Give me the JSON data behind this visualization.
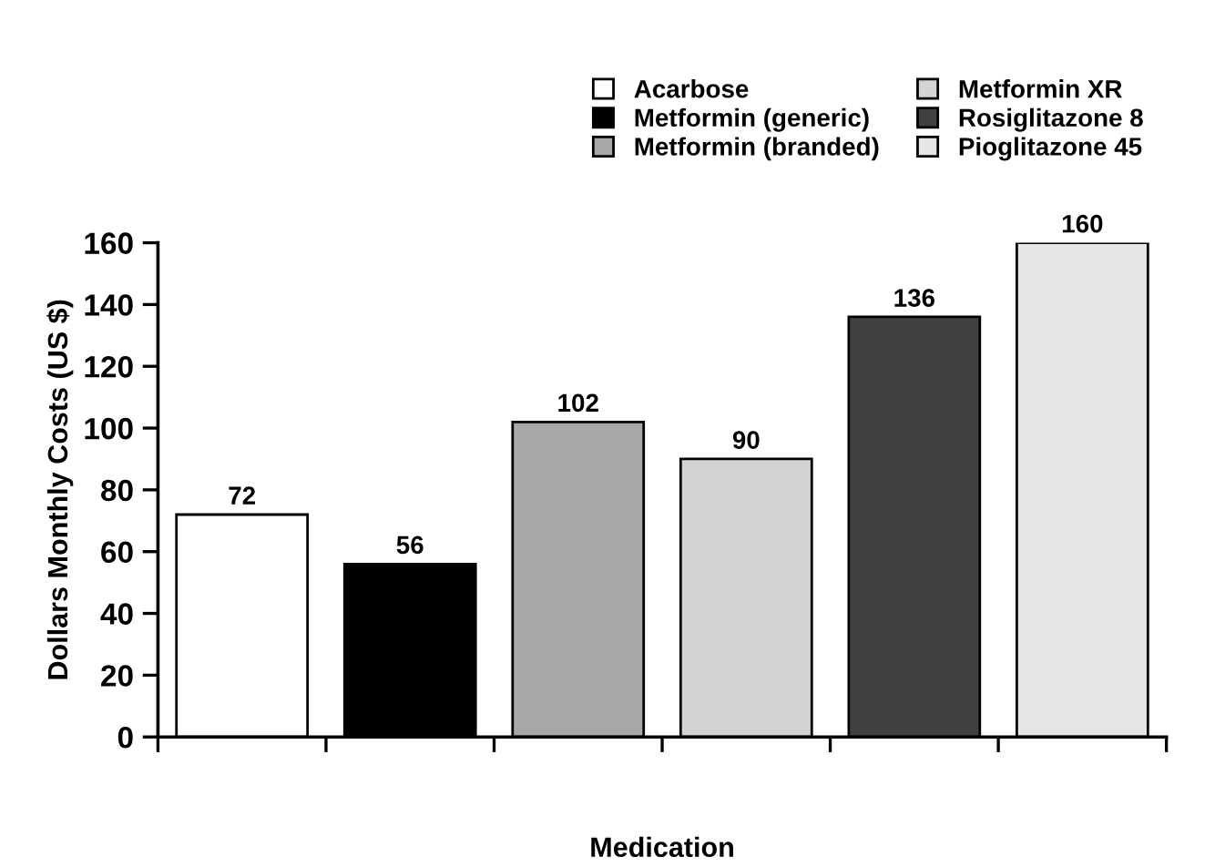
{
  "chart_data": {
    "type": "bar",
    "xlabel": "Medication",
    "ylabel": "Dollars Monthly Costs (US $)",
    "categories": [
      null,
      null,
      null,
      null,
      null,
      null
    ],
    "series": [
      {
        "name": "Acarbose",
        "color": "#ffffff",
        "values": [
          72,
          null,
          null,
          null,
          null,
          null
        ]
      },
      {
        "name": "Metformin (generic)",
        "color": "#000000",
        "values": [
          null,
          56,
          null,
          null,
          null,
          null
        ]
      },
      {
        "name": "Metformin (branded)",
        "color": "#a8a8a8",
        "values": [
          null,
          null,
          102,
          null,
          null,
          null
        ]
      },
      {
        "name": "Metformin XR",
        "color": "#d4d4d4",
        "values": [
          null,
          null,
          null,
          90,
          null,
          null
        ]
      },
      {
        "name": "Rosiglitazone 8",
        "color": "#404040",
        "values": [
          null,
          null,
          null,
          null,
          136,
          null
        ]
      },
      {
        "name": "Pioglitazone 45",
        "color": "#e6e6e6",
        "values": [
          null,
          null,
          null,
          null,
          null,
          160
        ]
      }
    ],
    "ylim": [
      0,
      160
    ],
    "yticks": [
      0,
      20,
      40,
      60,
      80,
      100,
      120,
      140,
      160
    ],
    "data_labels": true,
    "grid": false,
    "legend": "top right"
  }
}
